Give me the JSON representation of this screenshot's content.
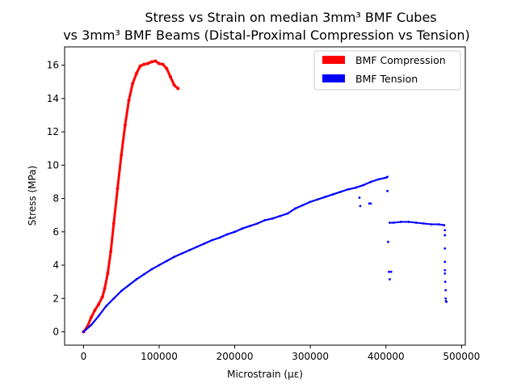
{
  "chart_data": {
    "type": "scatter",
    "title_line1": "Stress vs Strain on median 3mm³ BMF Cubes",
    "title_line2": "vs 3mm³ BMF Beams (Distal-Proximal Compression vs Tension)",
    "xlabel": "Microstrain (με)",
    "ylabel": "Stress (MPa)",
    "xlim": [
      -25000,
      505000
    ],
    "ylim": [
      -0.8,
      17.1
    ],
    "x_ticks": [
      0,
      100000,
      200000,
      300000,
      400000,
      500000
    ],
    "x_tick_labels": [
      "0",
      "100000",
      "200000",
      "300000",
      "400000",
      "500000"
    ],
    "y_ticks": [
      0,
      2,
      4,
      6,
      8,
      10,
      12,
      14,
      16
    ],
    "y_tick_labels": [
      "0",
      "2",
      "4",
      "6",
      "8",
      "10",
      "12",
      "14",
      "16"
    ],
    "grid": false,
    "legend_position": "top-right",
    "series": [
      {
        "name": "BMF Compression",
        "color": "#ff0000",
        "points": [
          [
            0,
            0
          ],
          [
            5000,
            0.3
          ],
          [
            10000,
            0.85
          ],
          [
            15000,
            1.3
          ],
          [
            20000,
            1.65
          ],
          [
            25000,
            2.1
          ],
          [
            28000,
            2.6
          ],
          [
            32000,
            3.5
          ],
          [
            36000,
            4.8
          ],
          [
            40000,
            6.5
          ],
          [
            45000,
            8.6
          ],
          [
            50000,
            10.6
          ],
          [
            55000,
            12.4
          ],
          [
            60000,
            13.9
          ],
          [
            65000,
            14.9
          ],
          [
            70000,
            15.5
          ],
          [
            75000,
            15.95
          ],
          [
            80000,
            16.05
          ],
          [
            85000,
            16.1
          ],
          [
            90000,
            16.2
          ],
          [
            95000,
            16.25
          ],
          [
            100000,
            16.1
          ],
          [
            105000,
            16.05
          ],
          [
            110000,
            15.8
          ],
          [
            115000,
            15.3
          ],
          [
            120000,
            14.8
          ],
          [
            125000,
            14.6
          ]
        ]
      },
      {
        "name": "BMF Tension",
        "color": "#0000ff",
        "points": [
          [
            0,
            0
          ],
          [
            10000,
            0.4
          ],
          [
            20000,
            0.95
          ],
          [
            30000,
            1.55
          ],
          [
            40000,
            2.0
          ],
          [
            50000,
            2.45
          ],
          [
            60000,
            2.8
          ],
          [
            70000,
            3.15
          ],
          [
            80000,
            3.45
          ],
          [
            90000,
            3.75
          ],
          [
            100000,
            4.0
          ],
          [
            110000,
            4.25
          ],
          [
            120000,
            4.5
          ],
          [
            130000,
            4.7
          ],
          [
            140000,
            4.9
          ],
          [
            150000,
            5.1
          ],
          [
            160000,
            5.3
          ],
          [
            170000,
            5.5
          ],
          [
            180000,
            5.65
          ],
          [
            190000,
            5.85
          ],
          [
            200000,
            6.0
          ],
          [
            210000,
            6.2
          ],
          [
            220000,
            6.35
          ],
          [
            230000,
            6.5
          ],
          [
            240000,
            6.7
          ],
          [
            250000,
            6.8
          ],
          [
            260000,
            6.95
          ],
          [
            270000,
            7.1
          ],
          [
            280000,
            7.4
          ],
          [
            290000,
            7.6
          ],
          [
            300000,
            7.8
          ],
          [
            310000,
            7.95
          ],
          [
            320000,
            8.1
          ],
          [
            330000,
            8.25
          ],
          [
            340000,
            8.4
          ],
          [
            350000,
            8.55
          ],
          [
            360000,
            8.65
          ],
          [
            370000,
            8.8
          ],
          [
            380000,
            9.0
          ],
          [
            390000,
            9.15
          ],
          [
            400000,
            9.25
          ],
          [
            402000,
            9.3
          ],
          [
            365000,
            8.05
          ],
          [
            366000,
            7.55
          ],
          [
            378000,
            7.7
          ],
          [
            380000,
            7.7
          ],
          [
            402000,
            8.45
          ],
          [
            403000,
            5.4
          ],
          [
            404000,
            3.6
          ],
          [
            405000,
            3.15
          ],
          [
            407000,
            3.6
          ],
          [
            405000,
            6.55
          ],
          [
            410000,
            6.55
          ],
          [
            420000,
            6.6
          ],
          [
            430000,
            6.6
          ],
          [
            440000,
            6.55
          ],
          [
            450000,
            6.5
          ],
          [
            460000,
            6.45
          ],
          [
            470000,
            6.45
          ],
          [
            477000,
            6.4
          ],
          [
            478000,
            6.1
          ],
          [
            478000,
            5.8
          ],
          [
            478000,
            5.0
          ],
          [
            478000,
            4.2
          ],
          [
            478000,
            3.7
          ],
          [
            478000,
            3.5
          ],
          [
            478500,
            3.0
          ],
          [
            479000,
            2.5
          ],
          [
            479000,
            2.0
          ],
          [
            479500,
            1.85
          ],
          [
            480000,
            1.8
          ]
        ]
      }
    ]
  }
}
